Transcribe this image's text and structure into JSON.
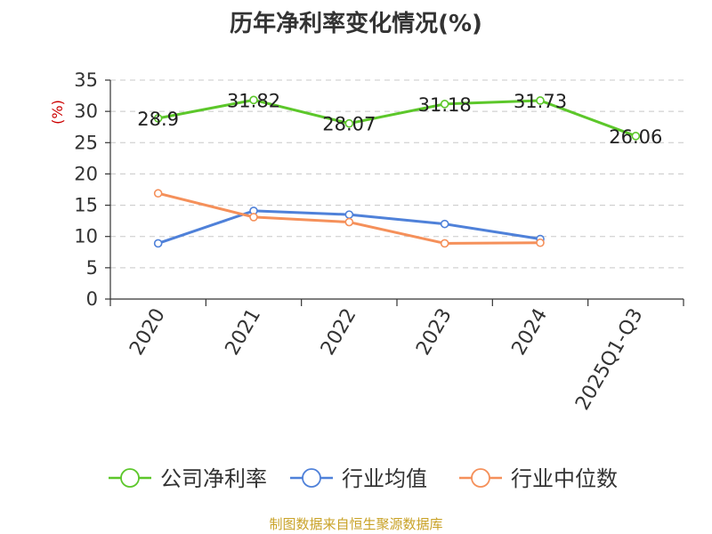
{
  "chart_data": {
    "type": "line",
    "title": "历年净利率变化情况(%)",
    "ylabel": "(%)",
    "xlabel": "",
    "categories": [
      "2020",
      "2021",
      "2022",
      "2023",
      "2024",
      "2025Q1-Q3"
    ],
    "ylim": [
      0,
      35
    ],
    "yticks": [
      0,
      5,
      10,
      15,
      20,
      25,
      30,
      35
    ],
    "grid": true,
    "legend_position": "bottom",
    "series": [
      {
        "name": "公司净利率",
        "color": "#5cc72a",
        "values": [
          28.9,
          31.82,
          28.07,
          31.18,
          31.73,
          26.06
        ],
        "labels": [
          "28.9",
          "31.82",
          "28.07",
          "31.18",
          "31.73",
          "26.06"
        ]
      },
      {
        "name": "行业均值",
        "color": "#4f81d9",
        "values": [
          8.9,
          14.1,
          13.5,
          12.0,
          9.6,
          null
        ]
      },
      {
        "name": "行业中位数",
        "color": "#f5905a",
        "values": [
          16.9,
          13.1,
          12.3,
          8.9,
          9.0,
          null
        ]
      }
    ]
  },
  "footer": {
    "source": "制图数据来自恒生聚源数据库"
  },
  "colors": {
    "axis": "#333333",
    "grid": "#c8c8c8",
    "ylabel": "#cc0000",
    "footer": "#c9a227"
  }
}
